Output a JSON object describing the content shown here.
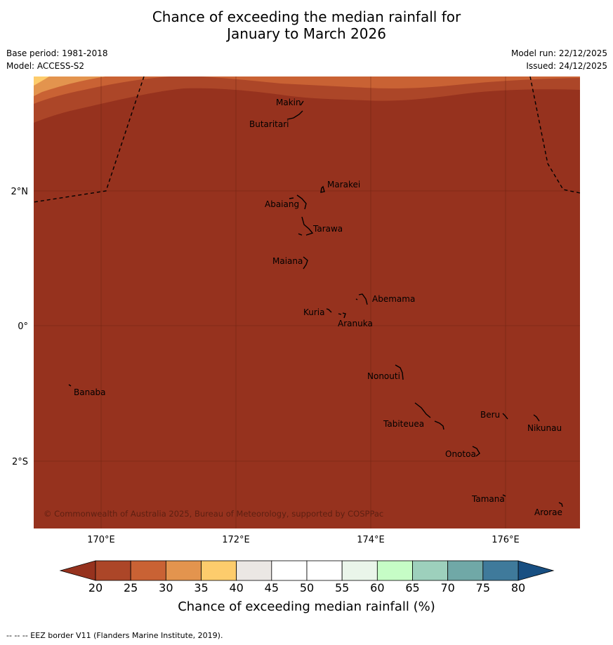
{
  "title": {
    "line1": "Chance of exceeding the median rainfall for",
    "line2": "January to March 2026"
  },
  "meta": {
    "base_period": "Base period: 1981-2018",
    "model": "Model: ACCESS-S2",
    "model_run": "Model run: 22/12/2025",
    "issued": "Issued: 24/12/2025"
  },
  "map": {
    "lat_labels": [
      "2°N",
      "0°",
      "2°S"
    ],
    "lon_labels": [
      "170°E",
      "172°E",
      "174°E",
      "176°E"
    ],
    "copyright": "© Commonwealth of Australia 2025, Bureau of Meteorology, supported by COSPPac",
    "islands": [
      "Makin",
      "Butaritari",
      "Marakei",
      "Abaiang",
      "Tarawa",
      "Maiana",
      "Abemama",
      "Kuria",
      "Aranuka",
      "Nonouti",
      "Banaba",
      "Tabiteuea",
      "Beru",
      "Nikunau",
      "Onotoa",
      "Tamana",
      "Arorae"
    ],
    "colors": {
      "bg": "#96321e",
      "band_20_25": "#ac4628",
      "band_25_30": "#c96234",
      "band_30_35": "#e3944e",
      "band_35_40": "#fdcc6c"
    }
  },
  "colorbar": {
    "ticks": [
      "20",
      "25",
      "30",
      "35",
      "40",
      "45",
      "50",
      "55",
      "60",
      "65",
      "70",
      "75",
      "80"
    ],
    "colors": [
      "#ac4628",
      "#c96234",
      "#e3944e",
      "#fdcc6c",
      "#ebe7e4",
      "#ffffff",
      "#ffffff",
      "#eaf5ea",
      "#c6fdc6",
      "#9dd0bc",
      "#70a8a7",
      "#3f7a9b"
    ],
    "low_color": "#96321e",
    "high_color": "#184f82",
    "label": "Chance of exceeding median rainfall (%)"
  },
  "footnote": "--  --  -- EEZ border V11 (Flanders Marine Institute, 2019)."
}
